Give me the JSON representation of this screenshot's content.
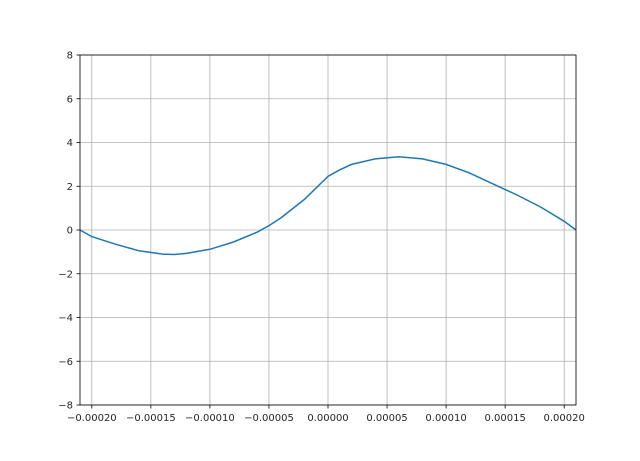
{
  "chart_data": {
    "type": "line",
    "title": "",
    "xlabel": "",
    "ylabel": "",
    "xlim": [
      -0.00021,
      0.00021
    ],
    "ylim": [
      -8,
      8
    ],
    "grid": true,
    "line_color": "#1f77b4",
    "xticks": [
      -0.0002,
      -0.00015,
      -0.0001,
      -5e-05,
      0,
      5e-05,
      0.0001,
      0.00015,
      0.0002
    ],
    "xtick_labels": [
      "−0.00020",
      "−0.00015",
      "−0.00010",
      "−0.00005",
      "0.00000",
      "0.00005",
      "0.00010",
      "0.00015",
      "0.00020"
    ],
    "yticks": [
      -8,
      -6,
      -4,
      -2,
      0,
      2,
      4,
      6,
      8
    ],
    "ytick_labels": [
      "−8",
      "−6",
      "−4",
      "−2",
      "0",
      "2",
      "4",
      "6",
      "8"
    ],
    "series": [
      {
        "x": [
          -0.00021,
          -0.0002,
          -0.00018,
          -0.00016,
          -0.00014,
          -0.00013,
          -0.00012,
          -0.0001,
          -8e-05,
          -6e-05,
          -5e-05,
          -4e-05,
          -2e-05,
          0,
          1e-05,
          2e-05,
          4e-05,
          6e-05,
          8e-05,
          0.0001,
          0.00012,
          0.00014,
          0.00016,
          0.00018,
          0.0002,
          0.00021
        ],
        "y": [
          0,
          -0.3,
          -0.65,
          -0.95,
          -1.1,
          -1.12,
          -1.07,
          -0.88,
          -0.55,
          -0.1,
          0.2,
          0.55,
          1.4,
          2.45,
          2.75,
          3.0,
          3.25,
          3.35,
          3.25,
          3.0,
          2.6,
          2.1,
          1.6,
          1.05,
          0.4,
          0
        ]
      }
    ]
  }
}
